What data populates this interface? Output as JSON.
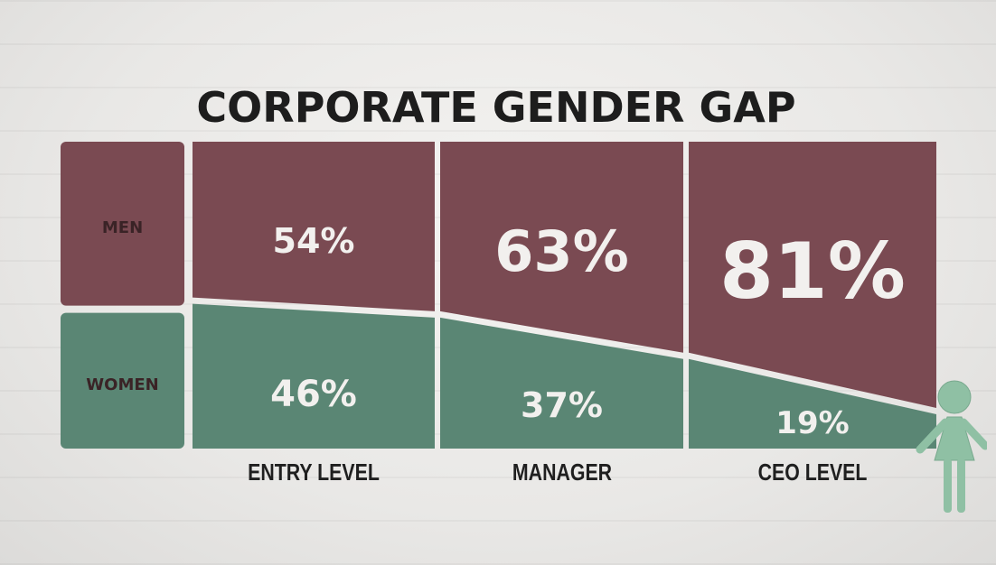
{
  "title": "CORPORATE GENDER GAP",
  "row_labels": {
    "men": "MEN",
    "women": "WOMEN"
  },
  "colors": {
    "men": "#7a4a52",
    "women": "#5a8674",
    "figure": "#8fc0a4"
  },
  "chart_data": {
    "type": "bar",
    "stacked": true,
    "title": "CORPORATE GENDER GAP",
    "categories": [
      "ENTRY LEVEL",
      "MANAGER",
      "CEO LEVEL"
    ],
    "series": [
      {
        "name": "MEN",
        "values": [
          54,
          63,
          81
        ],
        "labels": [
          "54%",
          "63%",
          "81%"
        ]
      },
      {
        "name": "WOMEN",
        "values": [
          46,
          37,
          19
        ],
        "labels": [
          "46%",
          "37%",
          "19%"
        ]
      }
    ],
    "unit": "%",
    "ylim": [
      0,
      100
    ]
  }
}
